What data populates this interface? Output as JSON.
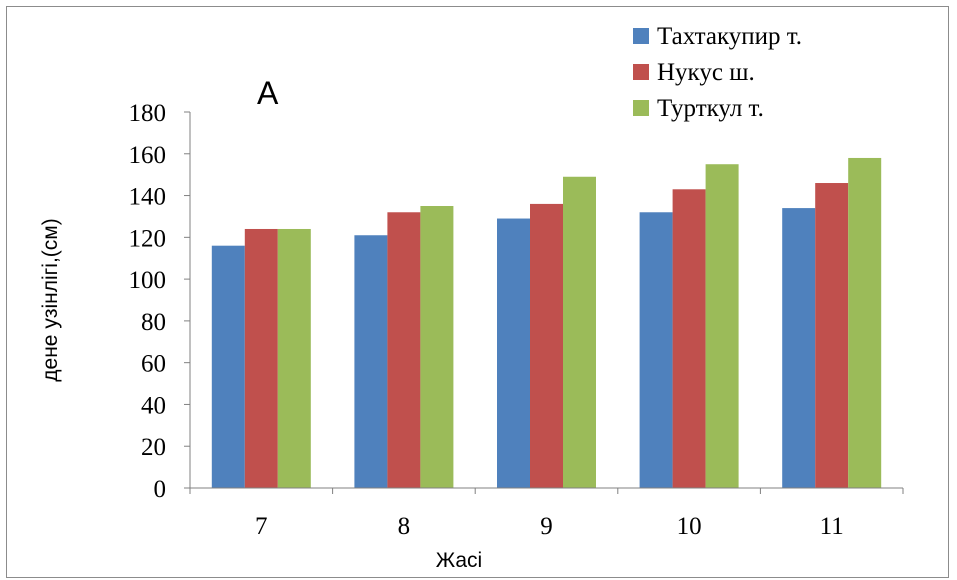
{
  "chart_data": {
    "type": "bar",
    "panel_label": "A",
    "categories": [
      "7",
      "8",
      "9",
      "10",
      "11"
    ],
    "series": [
      {
        "name": "Тахтакупир  т.",
        "color": "#4f81bd",
        "values": [
          116,
          121,
          129,
          132,
          134
        ]
      },
      {
        "name": "Нукус ш.",
        "color": "#c0504d",
        "values": [
          124,
          132,
          136,
          143,
          146
        ]
      },
      {
        "name": "Турткул т.",
        "color": "#9bbb59",
        "values": [
          124,
          135,
          149,
          155,
          158
        ]
      }
    ],
    "xlabel": "Жасі",
    "ylabel": "дене узінлігі,(см)",
    "ylim": [
      0,
      180
    ],
    "yticks": [
      "0",
      "20",
      "40",
      "60",
      "80",
      "100",
      "120",
      "140",
      "160",
      "180"
    ],
    "grid": false,
    "legend_position": "top-right"
  }
}
